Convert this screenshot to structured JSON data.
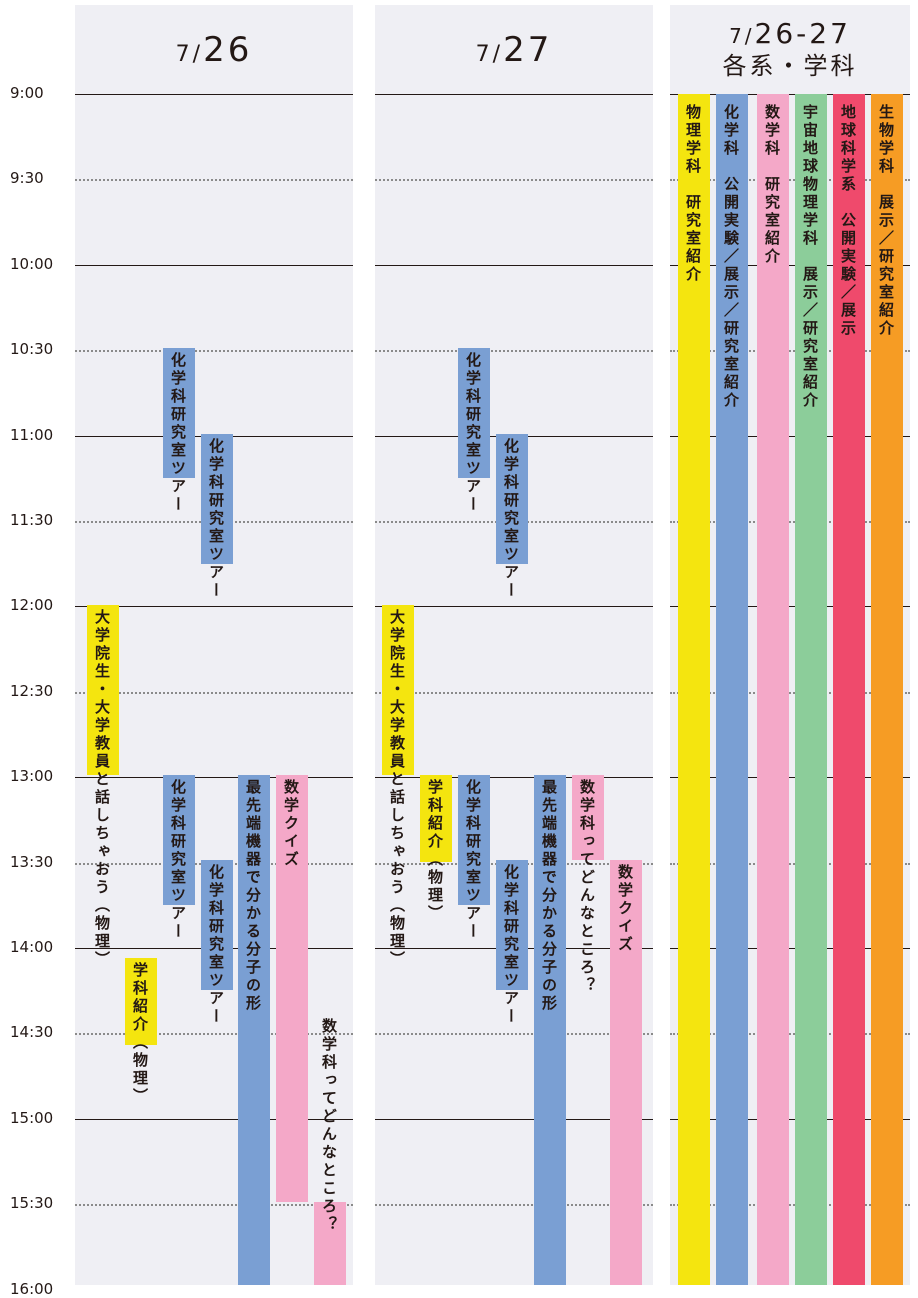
{
  "columns": [
    {
      "date_month": "7",
      "date_sep": "/",
      "date_day": "26"
    },
    {
      "date_month": "7",
      "date_sep": "/",
      "date_day": "27"
    },
    {
      "date_month": "7",
      "date_sep": "/",
      "date_day": "26-27",
      "subtitle": "各系・学科"
    }
  ],
  "time_labels": [
    "9:00",
    "9:30",
    "10:00",
    "10:30",
    "11:00",
    "11:30",
    "12:00",
    "12:30",
    "13:00",
    "13:30",
    "14:00",
    "14:30",
    "15:00",
    "15:30",
    "16:00"
  ],
  "colors": {
    "yellow": "#f4e50f",
    "blue": "#7a9fd3",
    "pink": "#f4a8c8",
    "green": "#8ccd9a",
    "red": "#ef4a6c",
    "orange": "#f69c24",
    "panel": "#efeff4"
  },
  "day1_events": [
    {
      "text": "化学科研究室ツアー",
      "color": "blue"
    },
    {
      "text": "化学科研究室ツアー",
      "color": "blue"
    },
    {
      "text": "大学院生・大学教員と話しちゃおう（物理）",
      "color": "yellow"
    },
    {
      "text": "化学科研究室ツアー",
      "color": "blue"
    },
    {
      "text": "化学科研究室ツアー",
      "color": "blue"
    },
    {
      "text": "学科紹介（物理）",
      "color": "yellow"
    },
    {
      "text": "最先端機器で分かる分子の形",
      "color": "blue"
    },
    {
      "text": "数学クイズ",
      "color": "pink"
    },
    {
      "text": "数学科ってどんなところ？",
      "color": "pink"
    }
  ],
  "day2_events": [
    {
      "text": "化学科研究室ツアー",
      "color": "blue"
    },
    {
      "text": "化学科研究室ツアー",
      "color": "blue"
    },
    {
      "text": "大学院生・大学教員と話しちゃおう（物理）",
      "color": "yellow"
    },
    {
      "text": "学科紹介（物理）",
      "color": "yellow"
    },
    {
      "text": "化学科研究室ツアー",
      "color": "blue"
    },
    {
      "text": "化学科研究室ツアー",
      "color": "blue"
    },
    {
      "text": "最先端機器で分かる分子の形",
      "color": "blue"
    },
    {
      "text": "数学科ってどんなところ？",
      "color": "pink"
    },
    {
      "text": "数学クイズ",
      "color": "pink"
    }
  ],
  "dept_bars": [
    {
      "name": "物理学科",
      "desc": "研究室紹介",
      "color": "yellow"
    },
    {
      "name": "化学科",
      "desc": "公開実験／展示／研究室紹介",
      "color": "blue"
    },
    {
      "name": "数学科",
      "desc": "研究室紹介",
      "color": "pink"
    },
    {
      "name": "宇宙地球物理学科",
      "desc": "展示／研究室紹介",
      "color": "green"
    },
    {
      "name": "地球科学系",
      "desc": "公開実験／展示",
      "color": "red"
    },
    {
      "name": "生物学科",
      "desc": "展示／研究室紹介",
      "color": "orange"
    }
  ]
}
